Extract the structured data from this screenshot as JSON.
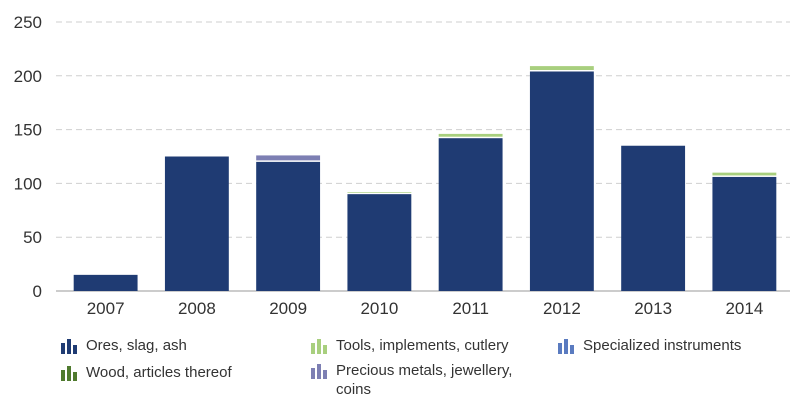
{
  "chart_data": {
    "type": "bar",
    "stacked": true,
    "categories": [
      "2007",
      "2008",
      "2009",
      "2010",
      "2011",
      "2012",
      "2013",
      "2014"
    ],
    "series": [
      {
        "name": "Ores, slag, ash",
        "color": "#1f3b73",
        "values": [
          15,
          125,
          120,
          90,
          142,
          204,
          135,
          106
        ]
      },
      {
        "name": "Wood, articles thereof",
        "color": "#4f7a2e",
        "values": [
          0,
          0,
          0,
          0,
          0,
          0,
          0,
          0
        ]
      },
      {
        "name": "Tools, implements, cutlery",
        "color": "#a8cf7e",
        "values": [
          0,
          0,
          0,
          2,
          4,
          5,
          0,
          4
        ]
      },
      {
        "name": "Precious metals, jewellery, coins",
        "color": "#7d7fb3",
        "values": [
          0,
          0,
          6,
          0,
          0,
          0,
          0,
          0
        ]
      },
      {
        "name": "Specialized instruments",
        "color": "#5a7bc0",
        "values": [
          0,
          0,
          0,
          0,
          0,
          0,
          0,
          0
        ]
      }
    ],
    "yticks": [
      "0",
      "50",
      "100",
      "150",
      "200",
      "250"
    ],
    "ylim": [
      0,
      250
    ],
    "grid": true,
    "legend_position": "bottom"
  },
  "legend": {
    "items": [
      {
        "label": "Ores, slag, ash",
        "color": "#1f3b73"
      },
      {
        "label": "Tools, implements, cutlery",
        "color": "#a8cf7e"
      },
      {
        "label": "Specialized instruments",
        "color": "#5a7bc0"
      },
      {
        "label": "Wood, articles thereof",
        "color": "#4f7a2e"
      },
      {
        "label": "Precious metals, jewellery, coins",
        "color": "#7d7fb3"
      }
    ]
  }
}
